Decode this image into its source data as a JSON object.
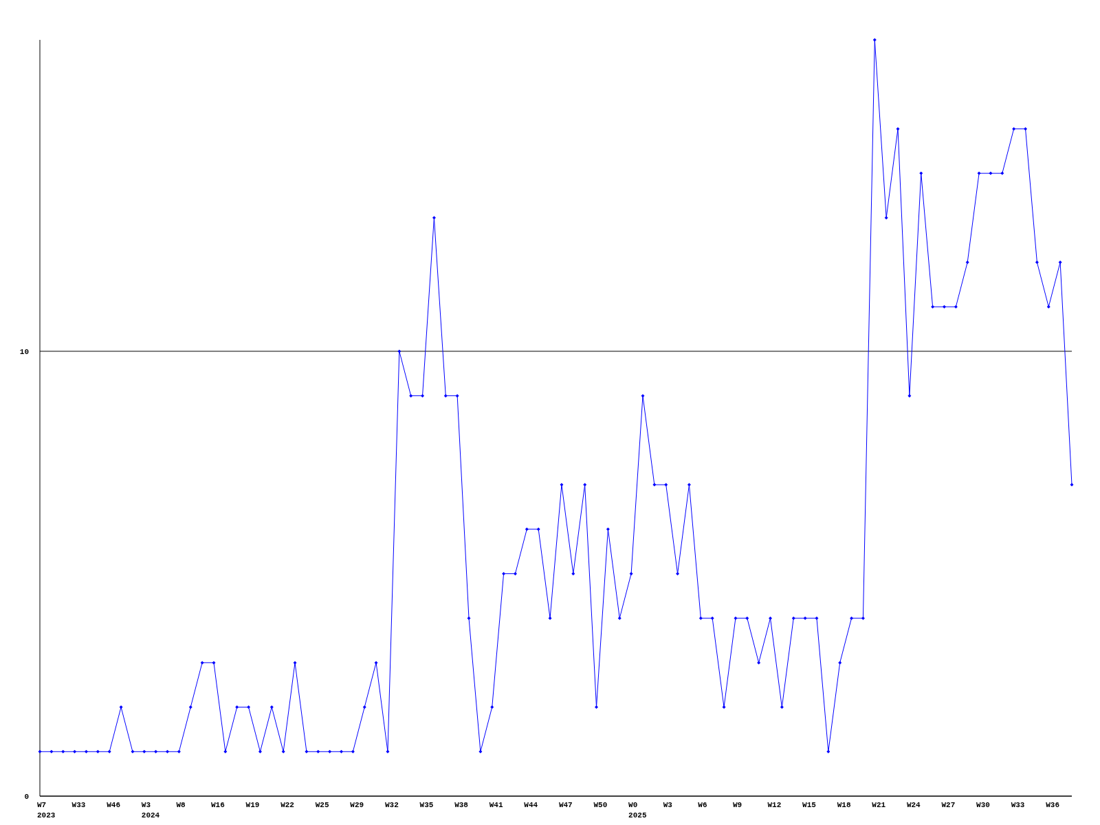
{
  "chart_data": {
    "type": "line",
    "categories": [
      "W7\n2023",
      null,
      null,
      "W33",
      null,
      null,
      "W46",
      null,
      null,
      "W3\n2024",
      null,
      null,
      "W8",
      null,
      null,
      "W16",
      null,
      null,
      "W19",
      null,
      null,
      "W22",
      null,
      null,
      "W25",
      null,
      null,
      "W29",
      null,
      null,
      "W32",
      null,
      null,
      "W35",
      null,
      null,
      "W38",
      null,
      null,
      "W41",
      null,
      null,
      "W44",
      null,
      null,
      "W47",
      null,
      null,
      "W50",
      null,
      null,
      "W0\n2025",
      null,
      null,
      "W3",
      null,
      null,
      "W6",
      null,
      null,
      "W9",
      null,
      null,
      "W12",
      null,
      null,
      "W15",
      null,
      null,
      "W18",
      null,
      null,
      "W21",
      null,
      null,
      "W24",
      null,
      null,
      "W27",
      null,
      null,
      "W30",
      null,
      null,
      "W33",
      null,
      null,
      "W36",
      null,
      null
    ],
    "series": [
      {
        "color": "#0000ff",
        "values": [
          1,
          1,
          1,
          1,
          1,
          1,
          1,
          2,
          1,
          1,
          1,
          1,
          1,
          2,
          3,
          3,
          1,
          2,
          2,
          1,
          2,
          1,
          3,
          1,
          1,
          1,
          1,
          1,
          2,
          3,
          1,
          10,
          9,
          9,
          13,
          9,
          9,
          4,
          1,
          2,
          5,
          5,
          6,
          6,
          4,
          7,
          5,
          7,
          2,
          6,
          4,
          5,
          9,
          7,
          7,
          5,
          7,
          4,
          4,
          2,
          4,
          4,
          3,
          4,
          2,
          4,
          4,
          4,
          1,
          3,
          4,
          4,
          17,
          13,
          15,
          9,
          14,
          11,
          11,
          11,
          12,
          14,
          14,
          14,
          15,
          15,
          12,
          11,
          12,
          7
        ]
      }
    ],
    "ylim": [
      0,
      17
    ],
    "yticks": [
      0,
      10
    ],
    "grid": "y",
    "marker": "diamond",
    "line_style": "solid"
  }
}
